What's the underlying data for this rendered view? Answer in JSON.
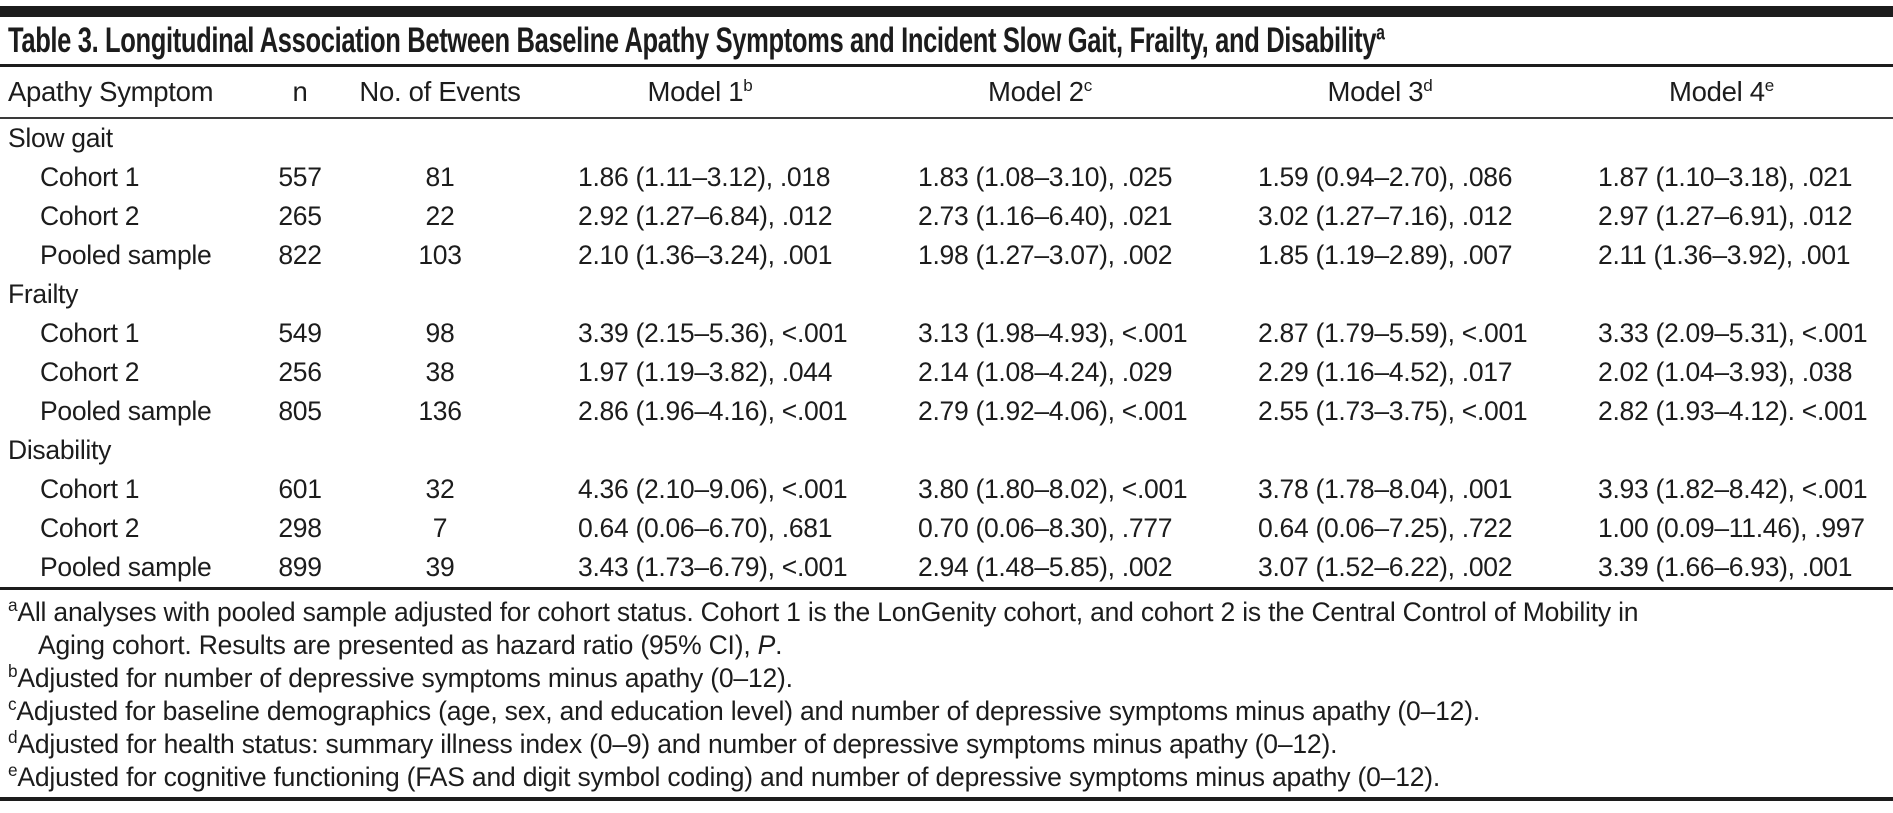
{
  "page": {
    "title": "Table 3. Longitudinal Association Between Baseline Apathy Symptoms and Incident Slow Gait, Frailty, and Disability",
    "title_sup": "a"
  },
  "header": {
    "apathy_symptom": "Apathy Symptom",
    "n": "n",
    "events": "No. of Events",
    "model1": "Model 1",
    "model1_sup": "b",
    "model2": "Model 2",
    "model2_sup": "c",
    "model3": "Model 3",
    "model3_sup": "d",
    "model4": "Model 4",
    "model4_sup": "e"
  },
  "sections": [
    {
      "name": "Slow gait",
      "rows": [
        {
          "label": "Cohort 1",
          "n": "557",
          "events": "81",
          "m1": "1.86 (1.11–3.12), .018",
          "m2": "1.83 (1.08–3.10), .025",
          "m3": "1.59 (0.94–2.70), .086",
          "m4": "1.87 (1.10–3.18), .021"
        },
        {
          "label": "Cohort 2",
          "n": "265",
          "events": "22",
          "m1": "2.92 (1.27–6.84), .012",
          "m2": "2.73 (1.16–6.40), .021",
          "m3": "3.02 (1.27–7.16), .012",
          "m4": "2.97 (1.27–6.91), .012"
        },
        {
          "label": "Pooled sample",
          "n": "822",
          "events": "103",
          "m1": "2.10 (1.36–3.24), .001",
          "m2": "1.98 (1.27–3.07), .002",
          "m3": "1.85 (1.19–2.89), .007",
          "m4": "2.11 (1.36–3.92), .001"
        }
      ]
    },
    {
      "name": "Frailty",
      "rows": [
        {
          "label": "Cohort 1",
          "n": "549",
          "events": "98",
          "m1": "3.39 (2.15–5.36), <.001",
          "m2": "3.13 (1.98–4.93), <.001",
          "m3": "2.87 (1.79–5.59), <.001",
          "m4": "3.33 (2.09–5.31), <.001"
        },
        {
          "label": "Cohort 2",
          "n": "256",
          "events": "38",
          "m1": "1.97 (1.19–3.82), .044",
          "m2": "2.14 (1.08–4.24), .029",
          "m3": "2.29 (1.16–4.52), .017",
          "m4": "2.02 (1.04–3.93), .038"
        },
        {
          "label": "Pooled sample",
          "n": "805",
          "events": "136",
          "m1": "2.86 (1.96–4.16), <.001",
          "m2": "2.79 (1.92–4.06), <.001",
          "m3": "2.55 (1.73–3.75), <.001",
          "m4": "2.82 (1.93–4.12). <.001"
        }
      ]
    },
    {
      "name": "Disability",
      "rows": [
        {
          "label": "Cohort 1",
          "n": "601",
          "events": "32",
          "m1": "4.36 (2.10–9.06), <.001",
          "m2": "3.80 (1.80–8.02), <.001",
          "m3": "3.78 (1.78–8.04), .001",
          "m4": "3.93 (1.82–8.42), <.001"
        },
        {
          "label": "Cohort 2",
          "n": "298",
          "events": "7",
          "m1": "0.64 (0.06–6.70), .681",
          "m2": "0.70 (0.06–8.30), .777",
          "m3": "0.64 (0.06–7.25), .722",
          "m4": "1.00 (0.09–11.46), .997"
        },
        {
          "label": "Pooled sample",
          "n": "899",
          "events": "39",
          "m1": "3.43 (1.73–6.79), <.001",
          "m2": "2.94 (1.48–5.85), .002",
          "m3": "3.07 (1.52–6.22), .002",
          "m4": "3.39 (1.66–6.93), .001"
        }
      ]
    }
  ],
  "footnotes": {
    "a": {
      "marker": "a",
      "line1": "All analyses with pooled sample adjusted for cohort status. Cohort 1 is the LonGenity cohort, and cohort 2 is the Central Control of Mobility in",
      "line2": "Aging cohort. Results are presented as hazard ratio (95% CI), ",
      "p": "P",
      "tail": "."
    },
    "b": {
      "marker": "b",
      "text": "Adjusted for number of depressive symptoms minus apathy (0–12)."
    },
    "c": {
      "marker": "c",
      "text": "Adjusted for baseline demographics (age, sex, and education level) and number of depressive symptoms minus apathy (0–12)."
    },
    "d": {
      "marker": "d",
      "text": "Adjusted for health status: summary illness index (0–9) and number of depressive symptoms minus apathy (0–12)."
    },
    "e": {
      "marker": "e",
      "text": "Adjusted for cognitive functioning (FAS and digit symbol coding) and number of depressive symptoms minus apathy (0–12)."
    }
  }
}
